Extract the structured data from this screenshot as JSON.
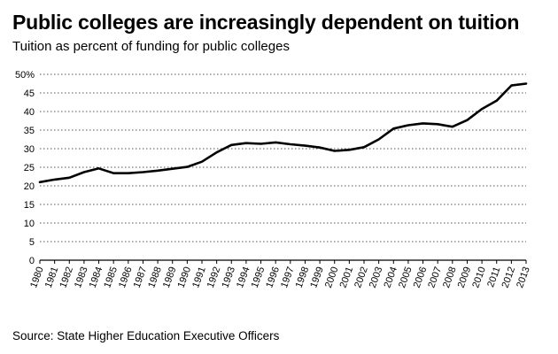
{
  "header": {
    "title": "Public colleges are increasingly dependent on tuition",
    "subtitle": "Tuition as percent of funding for public colleges"
  },
  "footer": {
    "source": "Source: State Higher Education Executive Officers"
  },
  "chart_data": {
    "type": "line",
    "title": "Public colleges are increasingly dependent on tuition",
    "subtitle": "Tuition as percent of funding for public colleges",
    "xlabel": "",
    "ylabel": "",
    "ylim": [
      0,
      50
    ],
    "yticks": [
      0,
      5,
      10,
      15,
      20,
      25,
      30,
      35,
      40,
      45,
      50
    ],
    "ytick_labels": [
      "0",
      "5",
      "10",
      "15",
      "20",
      "25",
      "30",
      "35",
      "40",
      "45",
      "50%"
    ],
    "grid": "horizontal-dotted",
    "line_color": "#000000",
    "x": [
      "1980",
      "1981",
      "1982",
      "1983",
      "1984",
      "1985",
      "1986",
      "1987",
      "1988",
      "1989",
      "1990",
      "1991",
      "1992",
      "1993",
      "1994",
      "1995",
      "1996",
      "1997",
      "1998",
      "1999",
      "2000",
      "2001",
      "2002",
      "2003",
      "2004",
      "2005",
      "2006",
      "2007",
      "2008",
      "2009",
      "2010",
      "2011",
      "2012",
      "2013"
    ],
    "series": [
      {
        "values": [
          21.0,
          21.7,
          22.2,
          23.7,
          24.7,
          23.4,
          23.4,
          23.7,
          24.1,
          24.6,
          25.1,
          26.5,
          29.0,
          31.0,
          31.5,
          31.3,
          31.7,
          31.2,
          30.8,
          30.3,
          29.4,
          29.7,
          30.4,
          32.5,
          35.4,
          36.3,
          36.8,
          36.6,
          35.9,
          37.7,
          40.7,
          42.9,
          47.0,
          47.5
        ]
      }
    ]
  }
}
